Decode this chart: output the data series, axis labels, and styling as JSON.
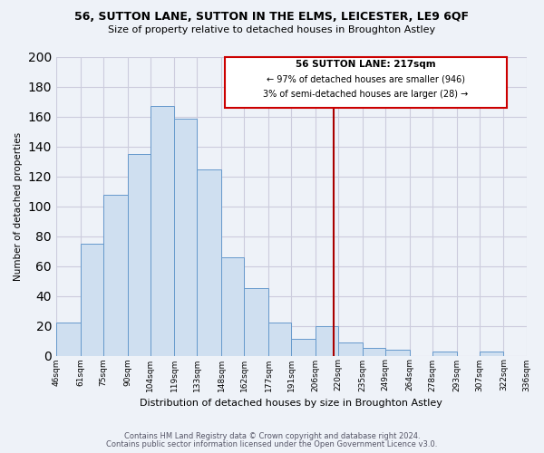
{
  "title": "56, SUTTON LANE, SUTTON IN THE ELMS, LEICESTER, LE9 6QF",
  "subtitle": "Size of property relative to detached houses in Broughton Astley",
  "xlabel": "Distribution of detached houses by size in Broughton Astley",
  "ylabel": "Number of detached properties",
  "bin_labels": [
    "46sqm",
    "61sqm",
    "75sqm",
    "90sqm",
    "104sqm",
    "119sqm",
    "133sqm",
    "148sqm",
    "162sqm",
    "177sqm",
    "191sqm",
    "206sqm",
    "220sqm",
    "235sqm",
    "249sqm",
    "264sqm",
    "278sqm",
    "293sqm",
    "307sqm",
    "322sqm",
    "336sqm"
  ],
  "bin_edges": [
    46,
    61,
    75,
    90,
    104,
    119,
    133,
    148,
    162,
    177,
    191,
    206,
    220,
    235,
    249,
    264,
    278,
    293,
    307,
    322,
    336
  ],
  "bar_heights": [
    22,
    75,
    108,
    135,
    167,
    159,
    125,
    66,
    45,
    22,
    11,
    20,
    9,
    5,
    4,
    0,
    3,
    0,
    3,
    0
  ],
  "bar_color": "#cfdff0",
  "bar_edge_color": "#6699cc",
  "vline_x": 217,
  "vline_color": "#aa0000",
  "box_text_line1": "56 SUTTON LANE: 217sqm",
  "box_text_line2": "← 97% of detached houses are smaller (946)",
  "box_text_line3": "3% of semi-detached houses are larger (28) →",
  "box_edge_color": "#cc0000",
  "ylim": [
    0,
    200
  ],
  "yticks": [
    0,
    20,
    40,
    60,
    80,
    100,
    120,
    140,
    160,
    180,
    200
  ],
  "footnote1": "Contains HM Land Registry data © Crown copyright and database right 2024.",
  "footnote2": "Contains public sector information licensed under the Open Government Licence v3.0.",
  "bg_color": "#eef2f8",
  "plot_bg_color": "#eef2f8",
  "grid_color": "#ccccdd"
}
